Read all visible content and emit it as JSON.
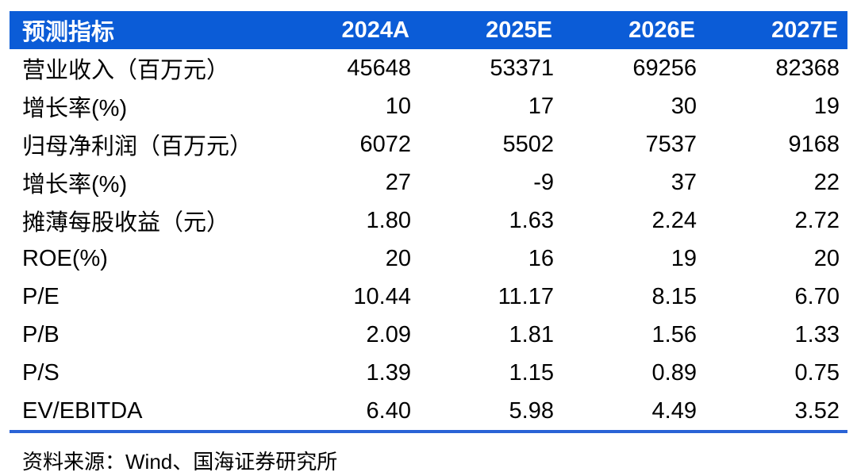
{
  "colors": {
    "header_bg": "#0b5cd7",
    "header_text": "#ffffff",
    "divider": "#2a63d6",
    "body_text": "#000000",
    "page_bg": "#ffffff"
  },
  "chart_data": {
    "type": "table",
    "title": "",
    "columns": [
      "预测指标",
      "2024A",
      "2025E",
      "2026E",
      "2027E"
    ],
    "rows": [
      {
        "label": "营业收入（百万元）",
        "values": [
          "45648",
          "53371",
          "69256",
          "82368"
        ]
      },
      {
        "label": "增长率(%)",
        "values": [
          "10",
          "17",
          "30",
          "19"
        ]
      },
      {
        "label": "归母净利润（百万元）",
        "values": [
          "6072",
          "5502",
          "7537",
          "9168"
        ]
      },
      {
        "label": "增长率(%)",
        "values": [
          "27",
          "-9",
          "37",
          "22"
        ]
      },
      {
        "label": "摊薄每股收益（元）",
        "values": [
          "1.80",
          "1.63",
          "2.24",
          "2.72"
        ]
      },
      {
        "label": "ROE(%)",
        "values": [
          "20",
          "16",
          "19",
          "20"
        ]
      },
      {
        "label": "P/E",
        "values": [
          "10.44",
          "11.17",
          "8.15",
          "6.70"
        ]
      },
      {
        "label": "P/B",
        "values": [
          "2.09",
          "1.81",
          "1.56",
          "1.33"
        ]
      },
      {
        "label": "P/S",
        "values": [
          "1.39",
          "1.15",
          "0.89",
          "0.75"
        ]
      },
      {
        "label": "EV/EBITDA",
        "values": [
          "6.40",
          "5.98",
          "4.49",
          "3.52"
        ]
      }
    ]
  },
  "footer": {
    "source": "资料来源：Wind、国海证券研究所"
  }
}
